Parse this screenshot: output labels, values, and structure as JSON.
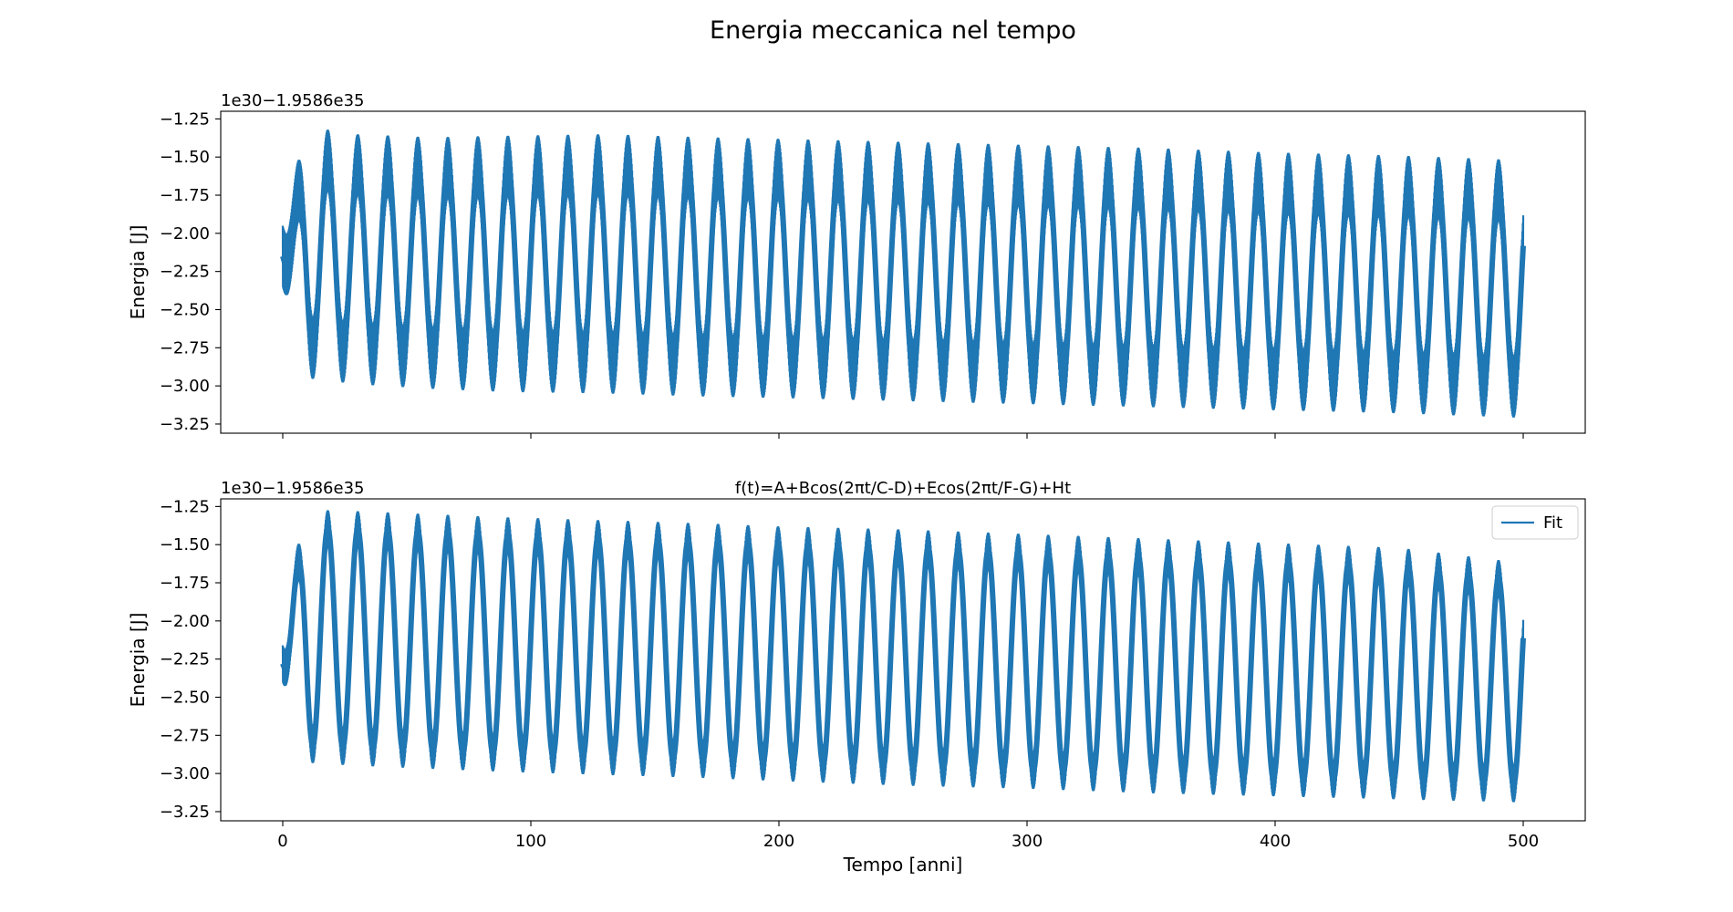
{
  "figure": {
    "title": "Energia meccanica nel tempo"
  },
  "chart_data": [
    {
      "type": "line",
      "title": "",
      "xlabel": "",
      "ylabel": "Energia [J]",
      "offset_text": "1e30−1.9586e35",
      "xlim": [
        -25,
        525
      ],
      "ylim": [
        -3.31,
        -1.2
      ],
      "x_ticks": [
        0,
        100,
        200,
        300,
        400,
        500
      ],
      "x_tick_labels": [],
      "y_ticks": [
        -1.25,
        -1.5,
        -1.75,
        -2.0,
        -2.25,
        -2.5,
        -2.75,
        -3.0,
        -3.25
      ],
      "y_tick_labels": [
        "−1.25",
        "−1.50",
        "−1.75",
        "−2.00",
        "−2.25",
        "−2.50",
        "−2.75",
        "−3.00",
        "−3.25"
      ],
      "grid": false,
      "legend": null,
      "series": [
        {
          "color": "#1f77b4",
          "x_range": [
            0,
            500
          ],
          "envelope": {
            "x": [
              0,
              10,
              30,
              60,
              90,
              130,
              170,
              200,
              250,
              300,
              350,
              400,
              450,
              500
            ],
            "upper": [
              -1.89,
              -1.3,
              -1.35,
              -1.37,
              -1.36,
              -1.35,
              -1.37,
              -1.38,
              -1.4,
              -1.42,
              -1.44,
              -1.47,
              -1.49,
              -1.52
            ],
            "lower": [
              -2.35,
              -2.95,
              -2.99,
              -3.02,
              -3.04,
              -3.05,
              -3.07,
              -3.08,
              -3.1,
              -3.12,
              -3.14,
              -3.16,
              -3.18,
              -3.21
            ]
          },
          "main_period": 12.1,
          "fast_period": 1.0,
          "fast_amplitude": 0.2
        }
      ]
    },
    {
      "type": "line",
      "title": "f(t)=A+Bcos(2πt/C-D)+Ecos(2πt/F-G)+Ht",
      "xlabel": "Tempo [anni]",
      "ylabel": "Energia [J]",
      "offset_text": "1e30−1.9586e35",
      "xlim": [
        -25,
        525
      ],
      "ylim": [
        -3.31,
        -1.2
      ],
      "x_ticks": [
        0,
        100,
        200,
        300,
        400,
        500
      ],
      "x_tick_labels": [
        "0",
        "100",
        "200",
        "300",
        "400",
        "500"
      ],
      "y_ticks": [
        -1.25,
        -1.5,
        -1.75,
        -2.0,
        -2.25,
        -2.5,
        -2.75,
        -3.0,
        -3.25
      ],
      "y_tick_labels": [
        "−1.25",
        "−1.50",
        "−1.75",
        "−2.00",
        "−2.25",
        "−2.50",
        "−2.75",
        "−3.00",
        "−3.25"
      ],
      "grid": false,
      "legend": {
        "placement": "top-right",
        "entries": [
          "Fit"
        ]
      },
      "series": [
        {
          "name": "Fit",
          "color": "#1f77b4",
          "x_range": [
            0,
            500
          ],
          "envelope": {
            "x": [
              0,
              10,
              30,
              60,
              90,
              130,
              170,
              200,
              250,
              300,
              350,
              400,
              450,
              500
            ],
            "upper": [
              -1.87,
              -1.27,
              -1.28,
              -1.3,
              -1.32,
              -1.34,
              -1.36,
              -1.38,
              -1.4,
              -1.43,
              -1.46,
              -1.49,
              -1.52,
              -1.62
            ],
            "lower": [
              -2.4,
              -2.93,
              -2.95,
              -2.97,
              -2.99,
              -3.01,
              -3.03,
              -3.05,
              -3.08,
              -3.1,
              -3.13,
              -3.15,
              -3.17,
              -3.19
            ]
          },
          "main_period": 12.1,
          "fast_period": 1.0,
          "fast_amplitude": 0.12
        }
      ]
    }
  ]
}
